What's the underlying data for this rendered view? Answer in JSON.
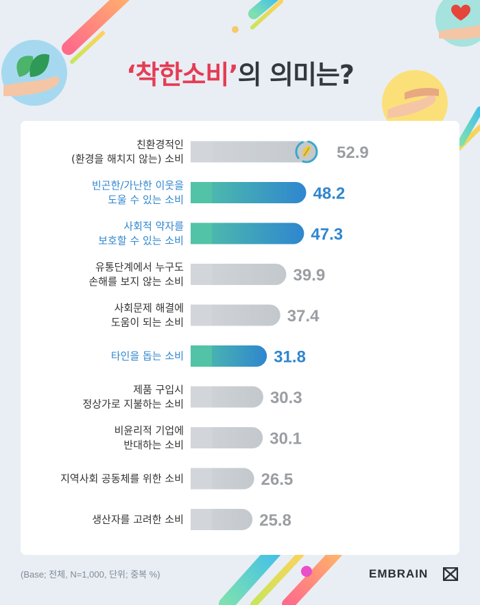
{
  "header": {
    "title_open_quote": "‘",
    "title_highlight": "착한소비",
    "title_close_quote": "’",
    "title_rest": "의 의미는?"
  },
  "colors": {
    "highlight_bar_start": "#52c3a6",
    "highlight_bar_end": "#2f86cf",
    "highlight_text": "#2f86cf",
    "normal_bar": "#c3c8cd",
    "normal_value": "#9a9ea3",
    "label_text": "#333333",
    "title_accent": "#e53c55"
  },
  "chart_data": {
    "type": "bar",
    "orientation": "horizontal",
    "categories": [
      [
        "친환경적인",
        "(환경을 해치지 않는) 소비"
      ],
      [
        "빈곤한/가난한 이웃을",
        "도울 수 있는 소비"
      ],
      [
        "사회적 약자를",
        "보호할 수 있는 소비"
      ],
      [
        "유통단계에서 누구도",
        "손해를 보지 않는 소비"
      ],
      [
        "사회문제 해결에",
        "도움이 되는 소비"
      ],
      [
        "타인을 돕는 소비"
      ],
      [
        "제품 구입시",
        "정상가로 지불하는 소비"
      ],
      [
        "비윤리적 기업에",
        "반대하는 소비"
      ],
      [
        "지역사회 공동체를 위한 소비"
      ],
      [
        "생산자를 고려한 소비"
      ]
    ],
    "values": [
      52.9,
      48.2,
      47.3,
      39.9,
      37.4,
      31.8,
      30.3,
      30.1,
      26.5,
      25.8
    ],
    "value_labels": [
      "52.9",
      "48.2",
      "47.3",
      "39.9",
      "37.4",
      "31.8",
      "30.3",
      "30.1",
      "26.5",
      "25.8"
    ],
    "highlighted": [
      false,
      true,
      true,
      false,
      false,
      true,
      false,
      false,
      false,
      false
    ],
    "unit": "%",
    "xlim": [
      0,
      60
    ],
    "grid": false,
    "legend": "none",
    "icon": "recycle-leaf-icon"
  },
  "footer": {
    "note": "(Base; 전체, N=1,000, 단위; 중복 %)",
    "brand": "EMBRAIN"
  }
}
